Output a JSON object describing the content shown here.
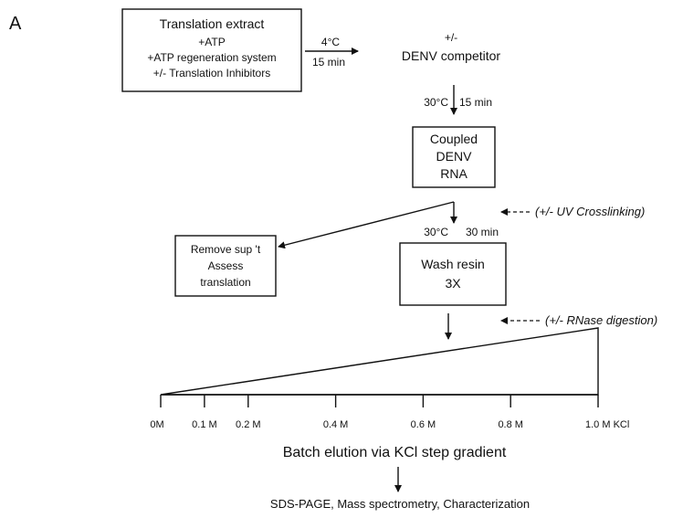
{
  "panel_label": "A",
  "extract_box": {
    "line1": "Translation extract",
    "line2": "+ATP",
    "line3": "+ATP regeneration system",
    "line4": "+/- Translation Inhibitors"
  },
  "arrow1": {
    "top": "4°C",
    "bottom": "15 min"
  },
  "competitor": {
    "line1": "+/-",
    "line2": "DENV competitor"
  },
  "step2": {
    "temp": "30°C",
    "time": "15 min"
  },
  "coupled_box": {
    "line1": "Coupled",
    "line2": "DENV",
    "line3": "RNA"
  },
  "uv_note": "(+/- UV Crosslinking)",
  "step3": {
    "temp": "30°C",
    "time": "30 min"
  },
  "remove_box": {
    "line1": "Remove sup 't",
    "line2": "Assess",
    "line3": "translation"
  },
  "wash_box": {
    "line1": "Wash resin",
    "line2": "3X"
  },
  "rnase_note": "(+/- RNase digestion)",
  "gradient_ticks": [
    {
      "label": "0M",
      "value": 0.0
    },
    {
      "label": "0.1 M",
      "value": 0.1
    },
    {
      "label": "0.2 M",
      "value": 0.2
    },
    {
      "label": "0.4 M",
      "value": 0.4
    },
    {
      "label": "0.6 M",
      "value": 0.6
    },
    {
      "label": "0.8 M",
      "value": 0.8
    },
    {
      "label": "1.0 M KCl",
      "value": 1.0
    }
  ],
  "elution_label": "Batch elution via KCl step gradient",
  "final_label": "SDS-PAGE, Mass spectrometry, Characterization"
}
